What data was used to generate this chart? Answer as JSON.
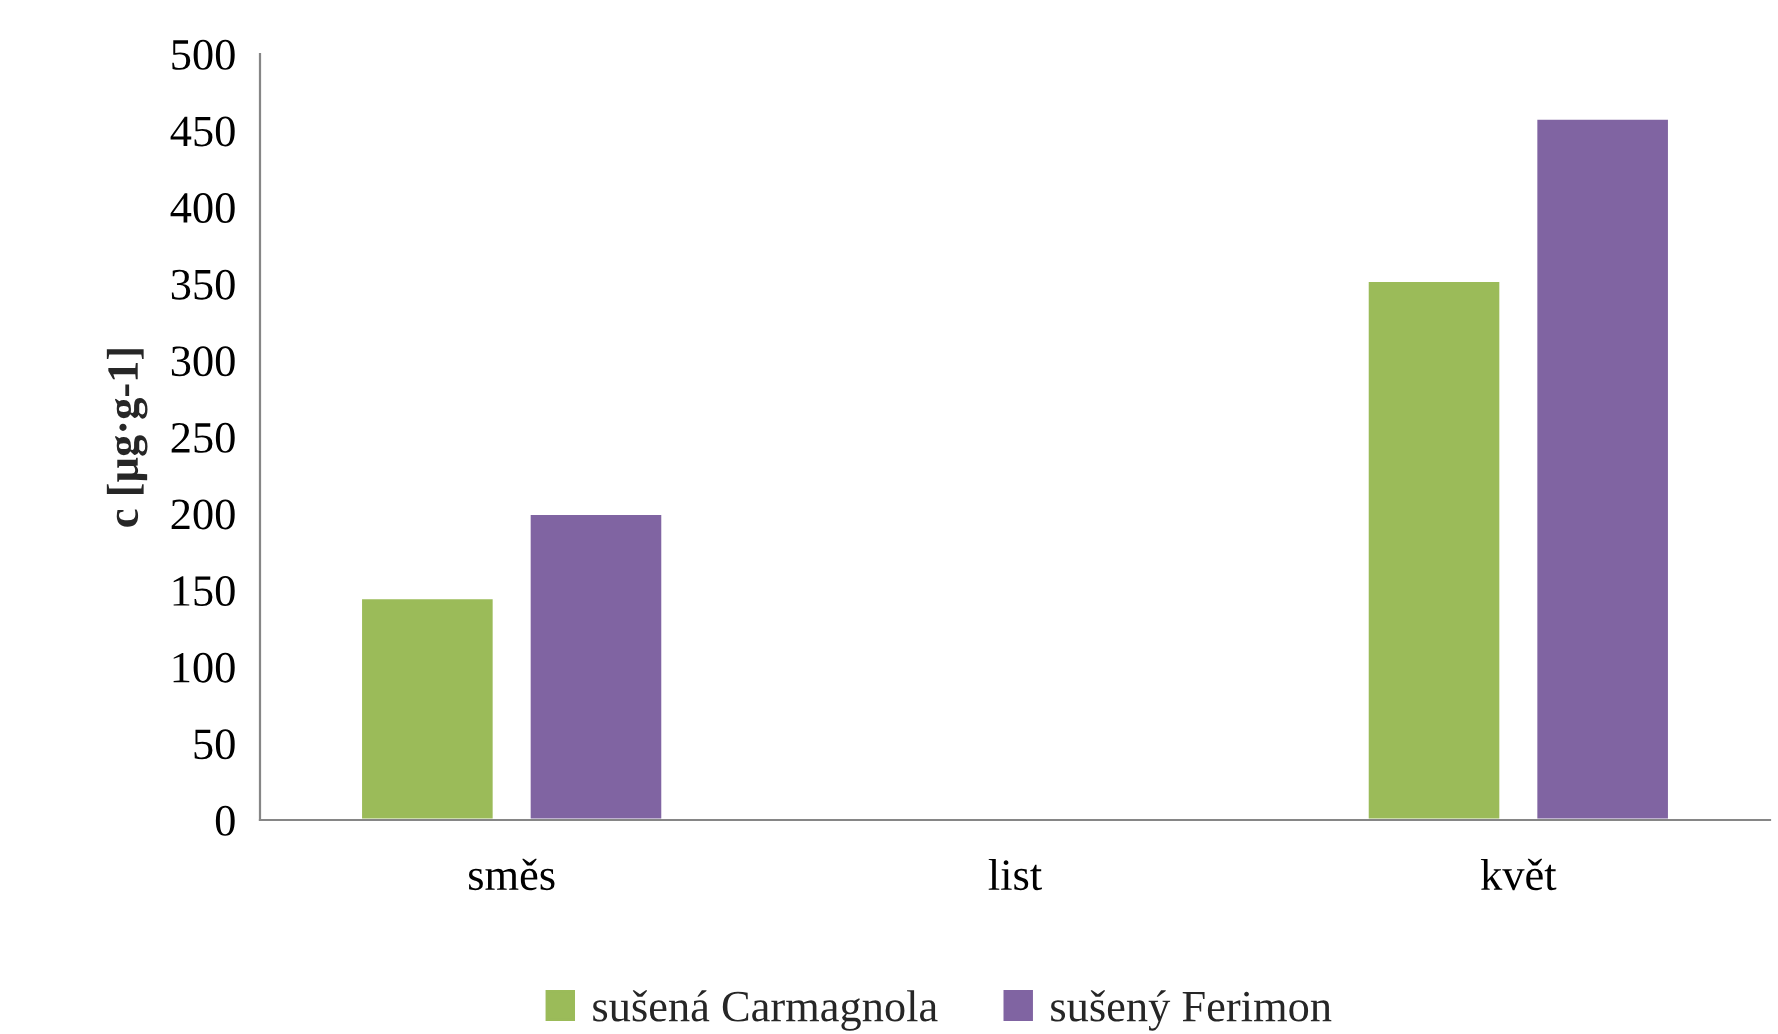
{
  "chart_data": {
    "type": "bar",
    "ylabel": "c [µg·g-1]",
    "categories": [
      "směs",
      "list",
      "květ"
    ],
    "series": [
      {
        "name": "sušená Carmagnola",
        "color": "#9bbb59",
        "values": [
          145,
          null,
          352
        ]
      },
      {
        "name": "sušený Ferimon",
        "color": "#8064a2",
        "values": [
          200,
          null,
          458
        ]
      }
    ],
    "ylim": [
      0,
      500
    ],
    "yticks": [
      0,
      50,
      100,
      150,
      200,
      250,
      300,
      350,
      400,
      450,
      500
    ],
    "grid": false,
    "legend": "bottom"
  }
}
